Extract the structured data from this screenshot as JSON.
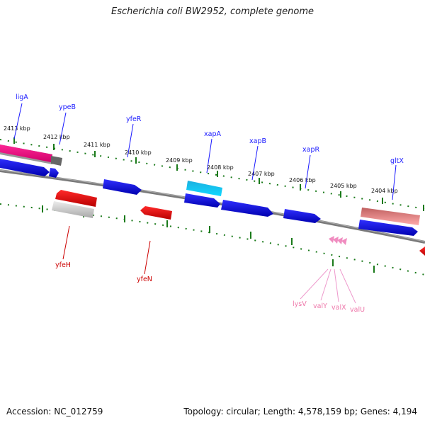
{
  "title": "Escherichia coli BW2952, complete genome",
  "footer": {
    "accession": "Accession: NC_012759",
    "summary": "Topology: circular; Length: 4,578,159 bp; Genes: 4,194"
  },
  "scale_labels": [
    "2413 kbp",
    "2412 kbp",
    "2411 kbp",
    "2410 kbp",
    "2409 kbp",
    "2408 kbp",
    "2407 kbp",
    "2406 kbp",
    "2405 kbp",
    "2404 kbp"
  ],
  "genes_top": [
    "ligA",
    "ypeB",
    "yfeR",
    "xapA",
    "xapB",
    "xapR",
    "gltX"
  ],
  "genes_bottom": [
    "yfeH",
    "yfeN"
  ],
  "trna_labels": [
    "lysV",
    "valY",
    "valX",
    "valU"
  ],
  "colors": {
    "forward_gene": "#1010e0",
    "reverse_gene": "#e00000",
    "backbone": "#808080",
    "ticks": "#1a7a1a",
    "trna": "#ee99cc",
    "rrna": "#ff1493"
  }
}
